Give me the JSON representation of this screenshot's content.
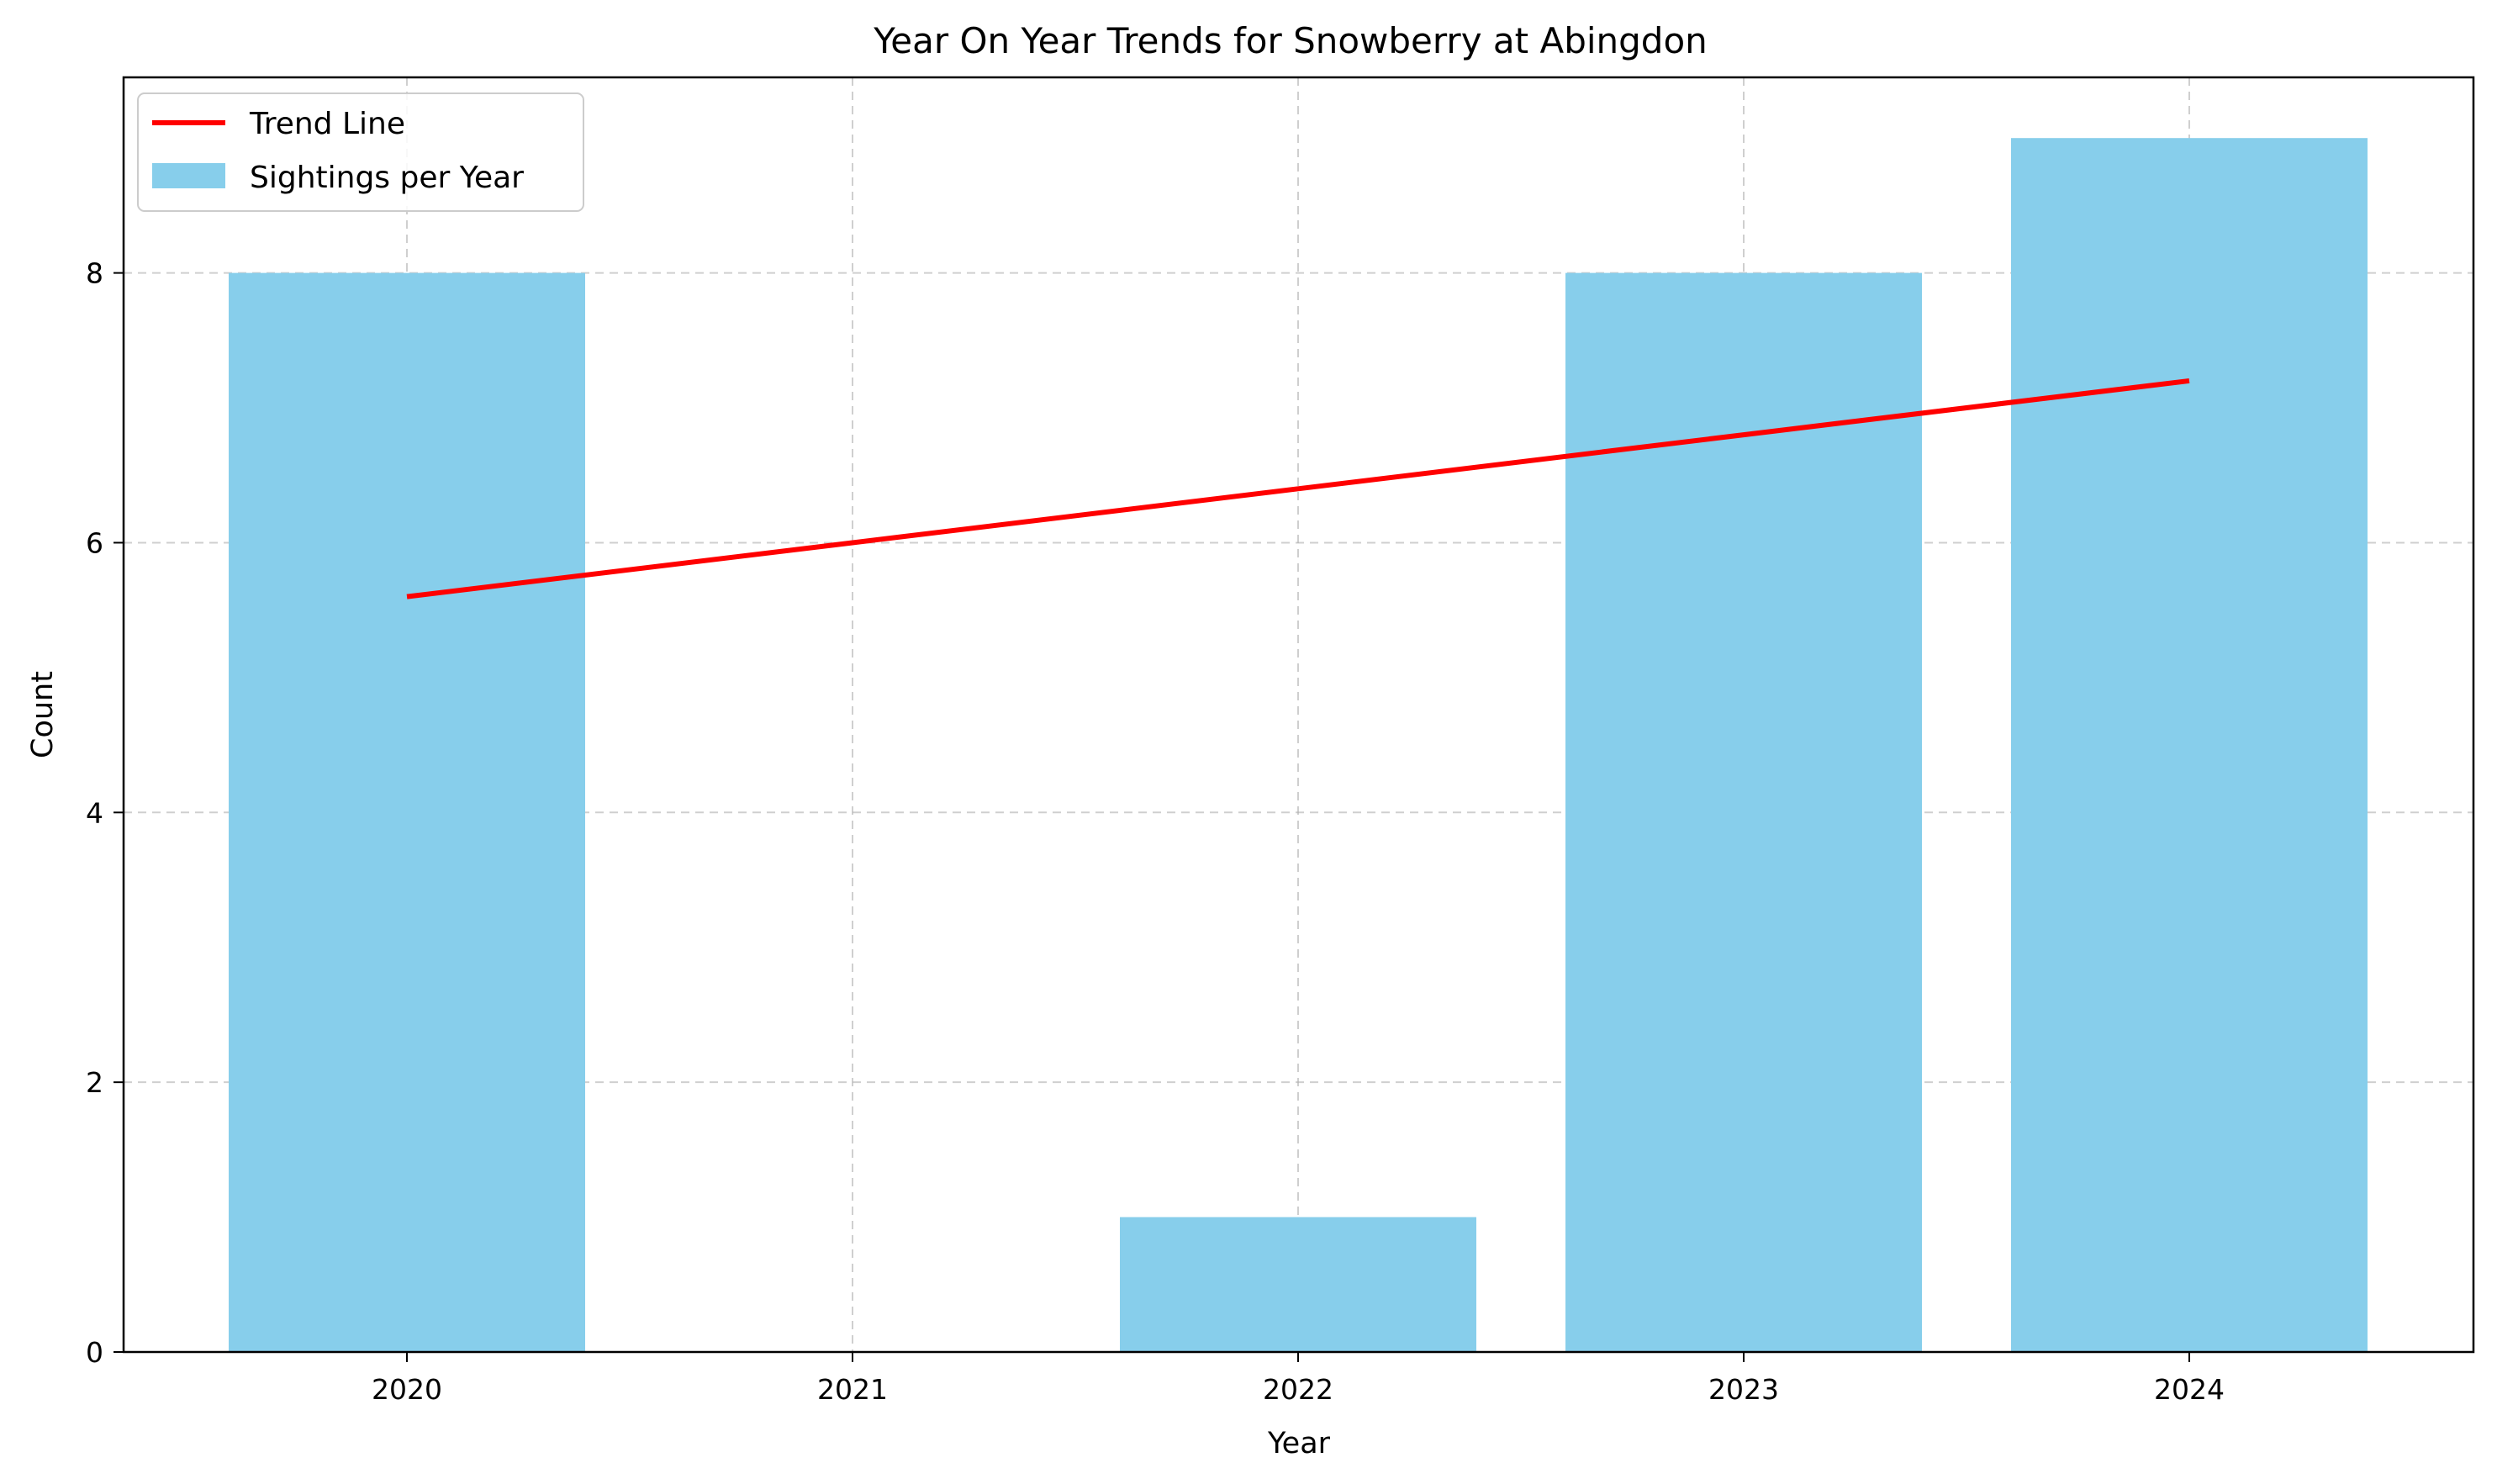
{
  "chart_data": {
    "type": "bar",
    "title": "Year On Year Trends for Snowberry at Abingdon",
    "xlabel": "Year",
    "ylabel": "Count",
    "categories": [
      "2020",
      "2021",
      "2022",
      "2023",
      "2024"
    ],
    "series": [
      {
        "name": "Sightings per Year",
        "type": "bar",
        "values": [
          8,
          0,
          1,
          8,
          9
        ],
        "color": "#87CEEB"
      },
      {
        "name": "Trend Line",
        "type": "line",
        "values": [
          5.6,
          6.0,
          6.4,
          6.8,
          7.2
        ],
        "color": "#FF0000"
      }
    ],
    "yticks": [
      0,
      2,
      4,
      6,
      8
    ],
    "ylim": [
      0,
      9.45
    ],
    "grid": true,
    "legend_position": "top-left"
  }
}
